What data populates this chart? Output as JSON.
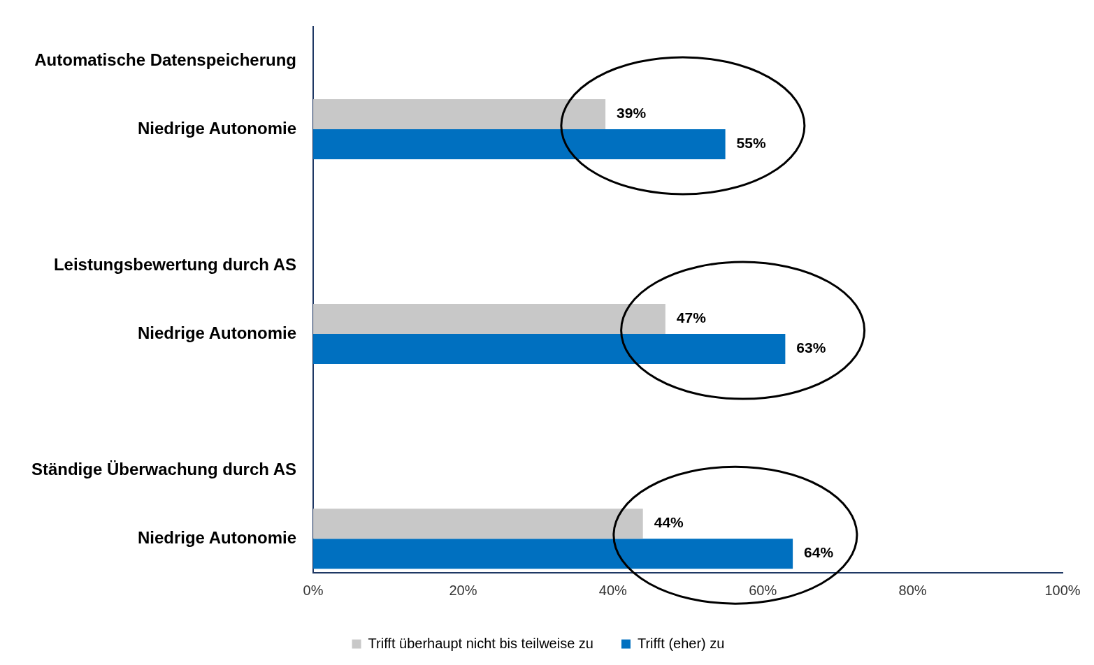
{
  "chart_data": {
    "type": "bar",
    "orientation": "horizontal",
    "categories": [
      "Automatische Datenspeicherung",
      "Niedrige Autonomie",
      null,
      "Leistungsbewertung durch AS",
      "Niedrige Autonomie",
      null,
      "Ständige Überwachung durch AS",
      "Niedrige Autonomie"
    ],
    "series": [
      {
        "name": "Trifft überhaupt nicht bis teilweise zu",
        "color": "#c8c8c8",
        "values": [
          null,
          39,
          null,
          null,
          47,
          null,
          null,
          44
        ],
        "value_labels": [
          null,
          "39%",
          null,
          null,
          "47%",
          null,
          null,
          "44%"
        ]
      },
      {
        "name": "Trifft (eher) zu",
        "color": "#0070c0",
        "values": [
          null,
          55,
          null,
          null,
          63,
          null,
          null,
          64
        ],
        "value_labels": [
          null,
          "55%",
          null,
          null,
          "63%",
          null,
          null,
          "64%"
        ]
      }
    ],
    "xlim": [
      0,
      100
    ],
    "xticks": [
      {
        "value": 0,
        "label": "0%"
      },
      {
        "value": 20,
        "label": "20%"
      },
      {
        "value": 40,
        "label": "40%"
      },
      {
        "value": 60,
        "label": "60%"
      },
      {
        "value": 80,
        "label": "80%"
      },
      {
        "value": 100,
        "label": "100%"
      }
    ],
    "grid": false,
    "legend": "bottom"
  }
}
